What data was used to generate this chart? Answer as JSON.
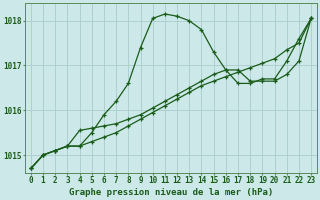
{
  "title": "Graphe pression niveau de la mer (hPa)",
  "bg_color": "#cce8e8",
  "grid_color": "#aacccc",
  "line_color": "#1a5c1a",
  "x_ticks": [
    0,
    1,
    2,
    3,
    4,
    5,
    6,
    7,
    8,
    9,
    10,
    11,
    12,
    13,
    14,
    15,
    16,
    17,
    18,
    19,
    20,
    21,
    22,
    23
  ],
  "series1": [
    1014.7,
    1015.0,
    1015.1,
    1015.2,
    1015.2,
    1015.5,
    1015.9,
    1016.2,
    1016.6,
    1017.4,
    1018.05,
    1018.15,
    1018.1,
    1018.0,
    1017.8,
    1017.3,
    1016.9,
    1016.6,
    1016.6,
    1016.7,
    1016.7,
    1017.1,
    1017.6,
    1018.05
  ],
  "series2": [
    1014.7,
    1015.0,
    1015.1,
    1015.2,
    1015.55,
    1015.6,
    1015.65,
    1015.7,
    1015.8,
    1015.9,
    1016.05,
    1016.2,
    1016.35,
    1016.5,
    1016.65,
    1016.8,
    1016.9,
    1016.9,
    1016.65,
    1016.65,
    1016.65,
    1016.8,
    1017.1,
    1018.05
  ],
  "series3": [
    1014.7,
    1015.0,
    1015.1,
    1015.2,
    1015.2,
    1015.3,
    1015.4,
    1015.5,
    1015.65,
    1015.8,
    1015.95,
    1016.1,
    1016.25,
    1016.4,
    1016.55,
    1016.65,
    1016.75,
    1016.85,
    1016.95,
    1017.05,
    1017.15,
    1017.35,
    1017.5,
    1018.05
  ],
  "ylim_min": 1014.6,
  "ylim_max": 1018.4,
  "yticks": [
    1015,
    1016,
    1017,
    1018
  ],
  "ytick_labels": [
    "1015",
    "1016",
    "1017",
    "1018"
  ],
  "xlabel_fontsize": 6.5,
  "tick_fontsize": 5.5
}
